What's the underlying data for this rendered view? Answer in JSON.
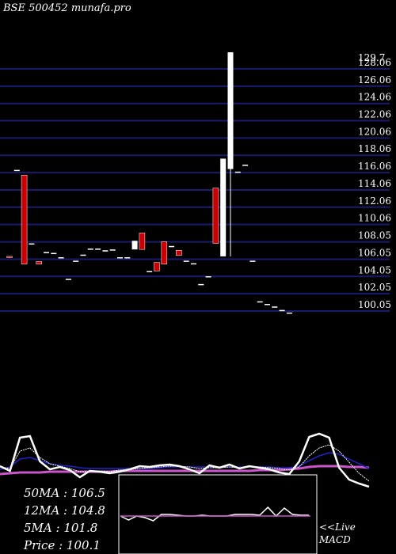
{
  "header": {
    "title": "BSE 500452 munafa.pro"
  },
  "chart_data": {
    "type": "candlestick",
    "ylim": [
      99.5,
      131
    ],
    "y_ticks": [
      129.7,
      128.06,
      126.06,
      124.06,
      122.06,
      120.06,
      118.06,
      116.06,
      114.06,
      112.06,
      110.06,
      108.05,
      106.05,
      104.05,
      102.05,
      100.05
    ],
    "candles": [
      {
        "t": 1,
        "open": 106.1,
        "close": 106.0,
        "high": 106.1,
        "low": 105.9
      },
      {
        "t": 2,
        "open": 116.1,
        "close": 116.1,
        "high": 116.1,
        "low": 116.1
      },
      {
        "t": 3,
        "open": 115.5,
        "close": 105.2,
        "high": 115.5,
        "low": 105.2
      },
      {
        "t": 4,
        "open": 107.6,
        "close": 107.6,
        "high": 107.6,
        "low": 107.6
      },
      {
        "t": 5,
        "open": 105.5,
        "close": 105.2,
        "high": 105.5,
        "low": 105.2
      },
      {
        "t": 6,
        "open": 106.6,
        "close": 106.6,
        "high": 106.6,
        "low": 106.6
      },
      {
        "t": 7,
        "open": 106.5,
        "close": 106.5,
        "high": 106.5,
        "low": 106.5
      },
      {
        "t": 8,
        "open": 106.0,
        "close": 106.0,
        "high": 106.0,
        "low": 106.0
      },
      {
        "t": 9,
        "open": 103.5,
        "close": 103.5,
        "high": 103.5,
        "low": 103.5
      },
      {
        "t": 10,
        "open": 105.6,
        "close": 105.6,
        "high": 105.6,
        "low": 105.6
      },
      {
        "t": 11,
        "open": 106.3,
        "close": 106.3,
        "high": 106.3,
        "low": 106.3
      },
      {
        "t": 12,
        "open": 107.0,
        "close": 107.0,
        "high": 107.0,
        "low": 107.0
      },
      {
        "t": 13,
        "open": 107.0,
        "close": 107.0,
        "high": 107.0,
        "low": 107.0
      },
      {
        "t": 14,
        "open": 106.8,
        "close": 106.8,
        "high": 106.8,
        "low": 106.8
      },
      {
        "t": 15,
        "open": 106.9,
        "close": 106.9,
        "high": 106.9,
        "low": 106.9
      },
      {
        "t": 16,
        "open": 106.0,
        "close": 106.0,
        "high": 106.0,
        "low": 106.0
      },
      {
        "t": 17,
        "open": 106.0,
        "close": 106.0,
        "high": 106.0,
        "low": 106.0
      },
      {
        "t": 18,
        "open": 106.9,
        "close": 107.9,
        "high": 107.9,
        "low": 106.9
      },
      {
        "t": 19,
        "open": 108.8,
        "close": 106.9,
        "high": 108.8,
        "low": 106.9
      },
      {
        "t": 20,
        "open": 104.4,
        "close": 104.4,
        "high": 104.4,
        "low": 104.4
      },
      {
        "t": 21,
        "open": 105.4,
        "close": 104.4,
        "high": 105.4,
        "low": 104.4
      },
      {
        "t": 22,
        "open": 107.8,
        "close": 105.2,
        "high": 107.8,
        "low": 105.2
      },
      {
        "t": 23,
        "open": 107.3,
        "close": 107.3,
        "high": 107.3,
        "low": 107.3
      },
      {
        "t": 24,
        "open": 106.8,
        "close": 106.2,
        "high": 106.8,
        "low": 106.2
      },
      {
        "t": 25,
        "open": 105.6,
        "close": 105.6,
        "high": 105.6,
        "low": 105.6
      },
      {
        "t": 26,
        "open": 105.3,
        "close": 105.3,
        "high": 105.3,
        "low": 105.3
      },
      {
        "t": 27,
        "open": 102.9,
        "close": 102.9,
        "high": 102.9,
        "low": 102.9
      },
      {
        "t": 28,
        "open": 103.8,
        "close": 103.8,
        "high": 103.8,
        "low": 103.8
      },
      {
        "t": 29,
        "open": 114.0,
        "close": 107.6,
        "high": 114.0,
        "low": 107.6
      },
      {
        "t": 30,
        "open": 106.1,
        "close": 117.4,
        "high": 117.4,
        "low": 106.1
      },
      {
        "t": 31,
        "open": 116.2,
        "close": 129.7,
        "high": 129.7,
        "low": 106.1
      },
      {
        "t": 32,
        "open": 115.9,
        "close": 115.9,
        "high": 115.9,
        "low": 115.9
      },
      {
        "t": 33,
        "open": 116.7,
        "close": 116.7,
        "high": 116.7,
        "low": 116.7
      },
      {
        "t": 34,
        "open": 105.6,
        "close": 105.6,
        "high": 105.6,
        "low": 105.6
      },
      {
        "t": 35,
        "open": 100.9,
        "close": 100.9,
        "high": 100.9,
        "low": 100.9
      },
      {
        "t": 36,
        "open": 100.6,
        "close": 100.6,
        "high": 100.6,
        "low": 100.6
      },
      {
        "t": 37,
        "open": 100.3,
        "close": 100.3,
        "high": 100.3,
        "low": 100.3
      },
      {
        "t": 38,
        "open": 99.9,
        "close": 99.9,
        "high": 99.9,
        "low": 99.9
      },
      {
        "t": 39,
        "open": 99.6,
        "close": 99.6,
        "high": 99.6,
        "low": 99.6
      }
    ],
    "ma_lines": {
      "price": [
        589,
        595,
        553,
        551,
        583,
        593,
        590,
        594,
        603,
        595,
        596,
        598,
        596,
        593,
        589,
        590,
        588,
        587,
        589,
        593,
        598,
        588,
        591,
        587,
        592,
        589,
        591,
        593,
        597,
        599,
        583,
        552,
        548,
        553,
        591,
        606,
        611,
        615
      ],
      "ma5": [
        590,
        592,
        570,
        566,
        578,
        586,
        589,
        592,
        596,
        596,
        595,
        596,
        594,
        593,
        592,
        591,
        590,
        589,
        589,
        590,
        592,
        591,
        591,
        590,
        591,
        590,
        590,
        591,
        592,
        594,
        590,
        576,
        566,
        562,
        570,
        584,
        598,
        608
      ],
      "ma12": [
        593,
        590,
        580,
        578,
        582,
        586,
        588,
        589,
        591,
        592,
        592,
        592,
        592,
        592,
        592,
        592,
        591,
        590,
        590,
        590,
        590,
        590,
        590,
        590,
        590,
        590,
        590,
        590,
        591,
        591,
        589,
        582,
        576,
        572,
        574,
        580,
        586,
        592
      ],
      "ma50": [
        599,
        598,
        597,
        597,
        597,
        596,
        596,
        596,
        596,
        596,
        596,
        596,
        595,
        595,
        595,
        595,
        595,
        595,
        595,
        595,
        595,
        595,
        595,
        595,
        595,
        595,
        594,
        594,
        594,
        593,
        592,
        590,
        589,
        589,
        589,
        590,
        590,
        591
      ]
    },
    "macd_line": [
      652,
      657,
      652,
      654,
      658,
      650,
      650,
      651,
      652,
      652,
      651,
      652,
      652,
      652,
      650,
      650,
      650,
      651,
      641,
      652,
      642,
      650,
      651,
      651
    ]
  },
  "stats": {
    "ma50": "50MA : 106.5",
    "ma12": "12MA : 104.8",
    "ma5": "5MA : 101.8",
    "price": "Price   : 100.1"
  },
  "labels": {
    "live": "<<Live",
    "macd": "MACD"
  },
  "colors": {
    "grid": "#1a1a6e",
    "bull": "#ffffff",
    "bear": "#cc0000",
    "ma50": "#cc55cc",
    "ma12": "#2222cc",
    "ma5": "#ffffff",
    "price": "#ffffff"
  }
}
